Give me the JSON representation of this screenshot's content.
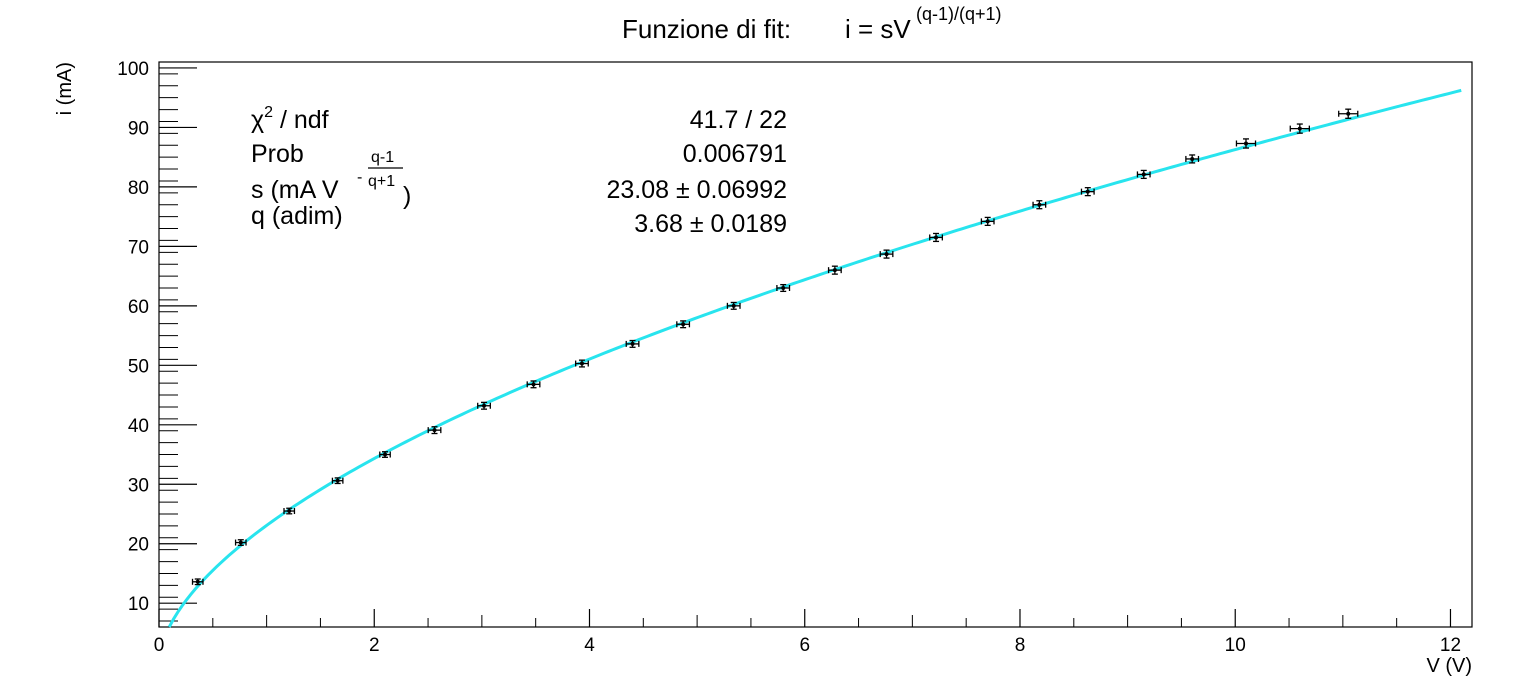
{
  "chart_data": {
    "type": "scatter",
    "title_prefix": "Funzione di fit:",
    "title_formula": {
      "lhs": "i = sV",
      "exponent": "(q-1)/(q+1)"
    },
    "xlabel": "V (V)",
    "ylabel": "i (mA)",
    "xlim": [
      0,
      12.2
    ],
    "ylim": [
      6,
      101
    ],
    "x_ticks": [
      "0",
      "2",
      "4",
      "6",
      "8",
      "10",
      "12"
    ],
    "y_ticks": [
      "10",
      "20",
      "30",
      "40",
      "50",
      "60",
      "70",
      "80",
      "90",
      "100"
    ],
    "colors": {
      "fit": "#28e4ee",
      "points": "#000000",
      "axes": "#000000"
    },
    "stats": {
      "chi2_label": "χ",
      "chi2_sup": "2",
      "chi2_rest": " / ndf",
      "chi2_value": "41.7 / 22",
      "prob_label": "Prob",
      "prob_value": "0.006791",
      "s_label": "s (mA V",
      "s_exp_minus": "-",
      "s_exp_num": "q-1",
      "s_exp_den": "q+1",
      "s_label_close": ")",
      "s_value": "23.08 ± 0.06992",
      "q_label": "q (adim)",
      "q_value": "3.68 ± 0.0189"
    },
    "fit": {
      "s": 23.08,
      "q": 3.68
    },
    "points": [
      {
        "x": 0.36,
        "y": 13.6,
        "ex": 0.03,
        "ey": 0.3
      },
      {
        "x": 0.76,
        "y": 20.2,
        "ex": 0.03,
        "ey": 0.3
      },
      {
        "x": 1.21,
        "y": 25.5,
        "ex": 0.03,
        "ey": 0.3
      },
      {
        "x": 1.66,
        "y": 30.6,
        "ex": 0.03,
        "ey": 0.3
      },
      {
        "x": 2.1,
        "y": 35.0,
        "ex": 0.03,
        "ey": 0.3
      },
      {
        "x": 2.56,
        "y": 39.1,
        "ex": 0.04,
        "ey": 0.4
      },
      {
        "x": 3.02,
        "y": 43.2,
        "ex": 0.04,
        "ey": 0.4
      },
      {
        "x": 3.48,
        "y": 46.8,
        "ex": 0.04,
        "ey": 0.4
      },
      {
        "x": 3.93,
        "y": 50.3,
        "ex": 0.04,
        "ey": 0.4
      },
      {
        "x": 4.4,
        "y": 53.6,
        "ex": 0.04,
        "ey": 0.4
      },
      {
        "x": 4.87,
        "y": 56.9,
        "ex": 0.04,
        "ey": 0.4
      },
      {
        "x": 5.34,
        "y": 60.0,
        "ex": 0.04,
        "ey": 0.4
      },
      {
        "x": 5.8,
        "y": 63.0,
        "ex": 0.04,
        "ey": 0.4
      },
      {
        "x": 6.28,
        "y": 66.0,
        "ex": 0.04,
        "ey": 0.5
      },
      {
        "x": 6.76,
        "y": 68.7,
        "ex": 0.04,
        "ey": 0.5
      },
      {
        "x": 7.22,
        "y": 71.5,
        "ex": 0.04,
        "ey": 0.5
      },
      {
        "x": 7.7,
        "y": 74.2,
        "ex": 0.04,
        "ey": 0.5
      },
      {
        "x": 8.18,
        "y": 77.0,
        "ex": 0.04,
        "ey": 0.5
      },
      {
        "x": 8.63,
        "y": 79.2,
        "ex": 0.04,
        "ey": 0.5
      },
      {
        "x": 9.15,
        "y": 82.1,
        "ex": 0.04,
        "ey": 0.5
      },
      {
        "x": 9.6,
        "y": 84.7,
        "ex": 0.04,
        "ey": 0.5
      },
      {
        "x": 10.1,
        "y": 87.3,
        "ex": 0.07,
        "ey": 0.6
      },
      {
        "x": 10.6,
        "y": 89.8,
        "ex": 0.07,
        "ey": 0.6
      },
      {
        "x": 11.05,
        "y": 92.3,
        "ex": 0.07,
        "ey": 0.6
      }
    ]
  }
}
